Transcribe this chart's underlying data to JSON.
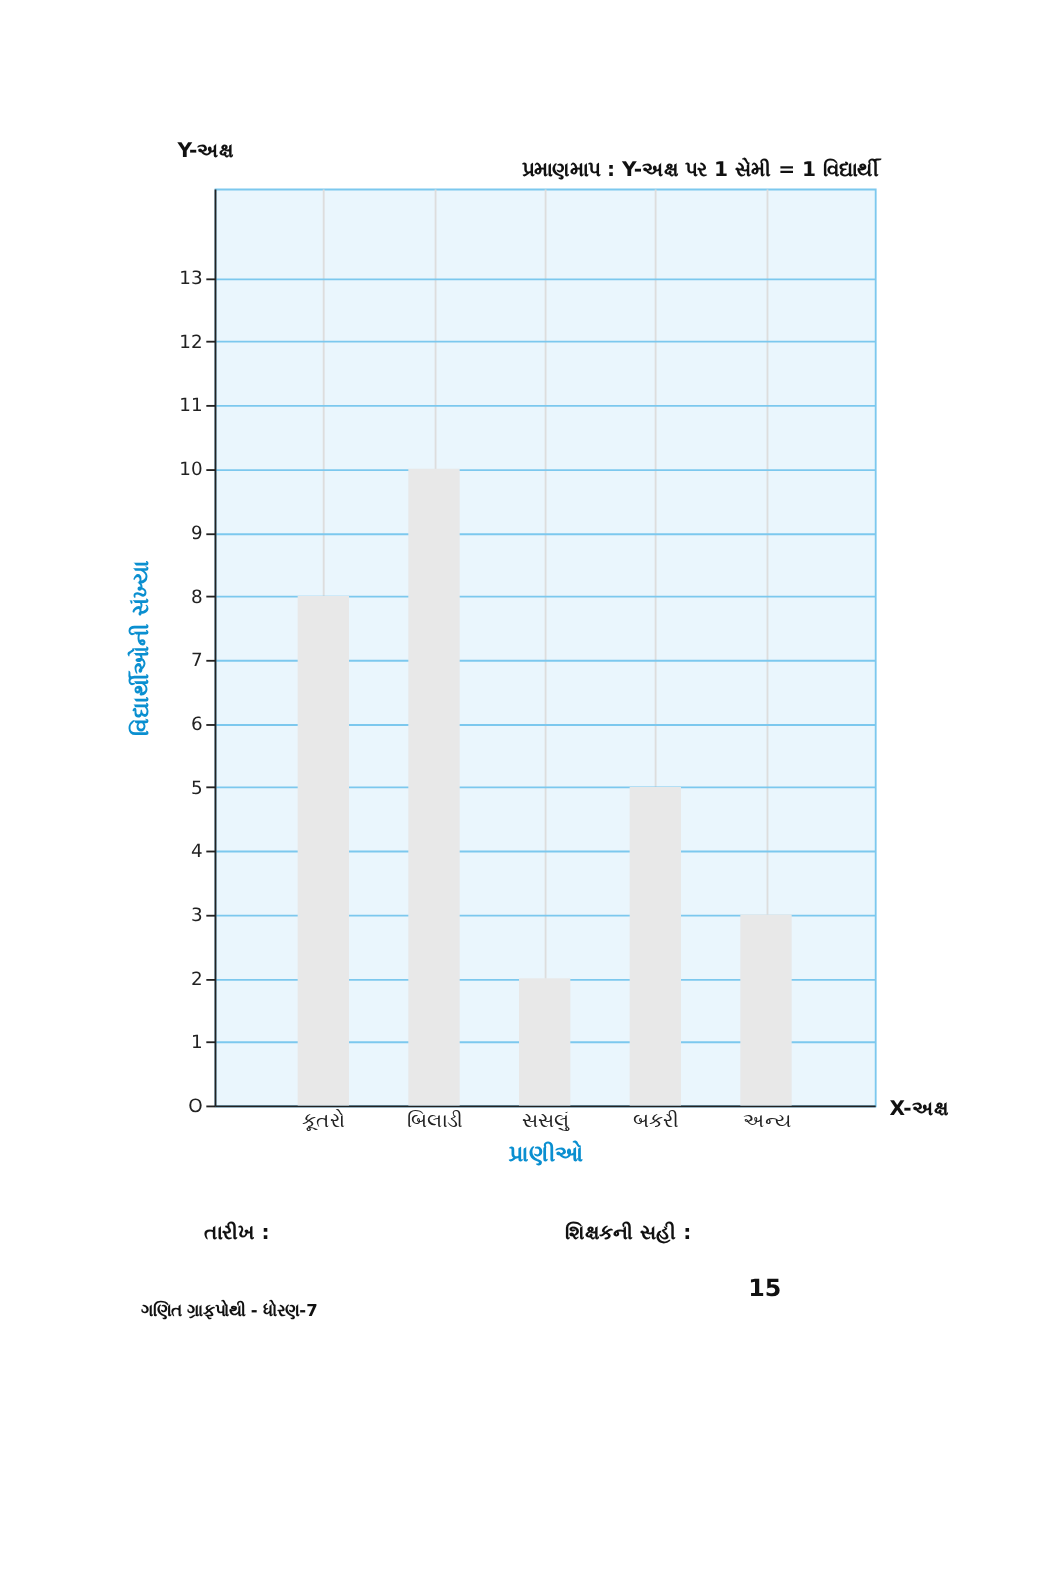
{
  "chart_data": {
    "type": "bar",
    "categories": [
      "કૂતરો",
      "બિલાડી",
      "સસલું",
      "બકરી",
      "અન્ય"
    ],
    "values": [
      8,
      10,
      2,
      5,
      3
    ],
    "color": "#e8e8e8",
    "xlabel": "પ્રાણીઓ",
    "ylabel": "વિદ્યાર્થીઓની સંખ્યા",
    "ylim": [
      0,
      14.4
    ],
    "yticks": [
      {
        "value": 0,
        "label": "O"
      },
      1,
      2,
      3,
      4,
      5,
      6,
      7,
      8,
      9,
      10,
      11,
      12,
      13
    ],
    "grid": true,
    "annotations": [
      "પ્રમાણમાપ : Y-અક્ષ પર 1 સેમી = 1 વિદ્યાર્થી",
      "Y-અક્ષ",
      "X-અક્ષ",
      "તારીખ :",
      "શિક્ષકની સહી :",
      "15",
      "ગણિત ગ્રાફપોથી - ધોરણ-7"
    ]
  }
}
